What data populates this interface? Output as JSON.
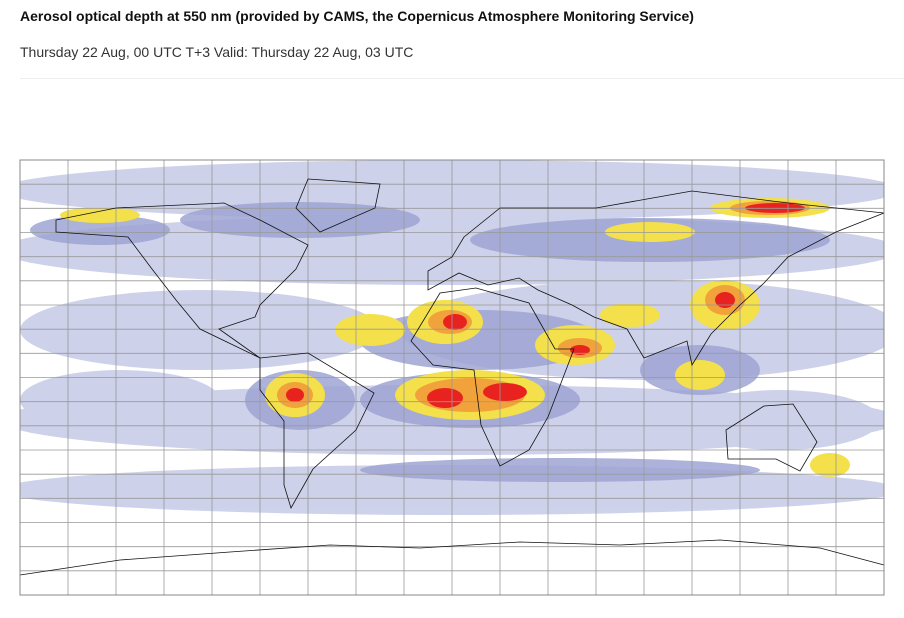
{
  "header": {
    "title": "Aerosol optical depth at 550 nm (provided by CAMS, the Copernicus Atmosphere Monitoring Service)",
    "subtitle": "Thursday 22 Aug, 00 UTC T+3 Valid: Thursday 22 Aug, 03 UTC"
  }
}
